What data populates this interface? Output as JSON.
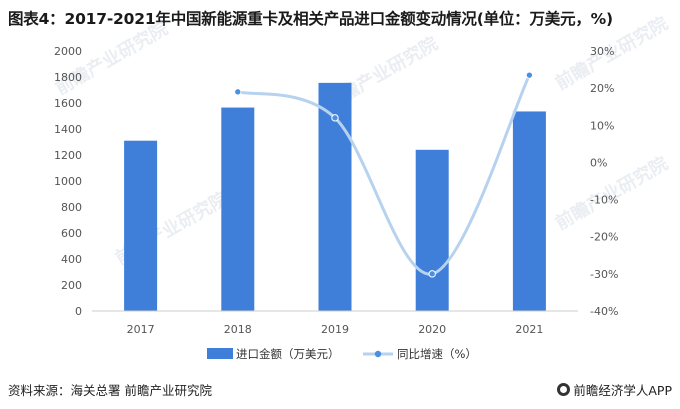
{
  "title": "图表4：2017-2021年中国新能源重卡及相关产品进口金额变动情况(单位：万美元，%)",
  "source": "资料来源：海关总署 前瞻产业研究院",
  "brand": "前瞻经济学人APP",
  "colors": {
    "bar": "#3f7fd9",
    "line": "#b7d2ee",
    "marker": "#4a90e2",
    "axis": "#cccccc"
  },
  "chart_data": {
    "type": "bar",
    "categories": [
      "2017",
      "2018",
      "2019",
      "2020",
      "2021"
    ],
    "series": [
      {
        "name": "进口金额（万美元）",
        "type": "bar",
        "axis": "left",
        "values": [
          1310,
          1565,
          1755,
          1240,
          1535
        ]
      },
      {
        "name": "同比增速（%）",
        "type": "line",
        "axis": "right",
        "values": [
          null,
          19,
          12,
          -30,
          23.5
        ]
      }
    ],
    "y_left": {
      "min": 0,
      "max": 2000,
      "step": 200,
      "ticks": [
        "0",
        "200",
        "400",
        "600",
        "800",
        "1000",
        "1200",
        "1400",
        "1600",
        "1800",
        "2000"
      ]
    },
    "y_right": {
      "min": -40,
      "max": 30,
      "step": 10,
      "ticks": [
        "-40%",
        "-30%",
        "-20%",
        "-10%",
        "0%",
        "10%",
        "20%",
        "30%"
      ]
    },
    "legend_position": "bottom"
  }
}
